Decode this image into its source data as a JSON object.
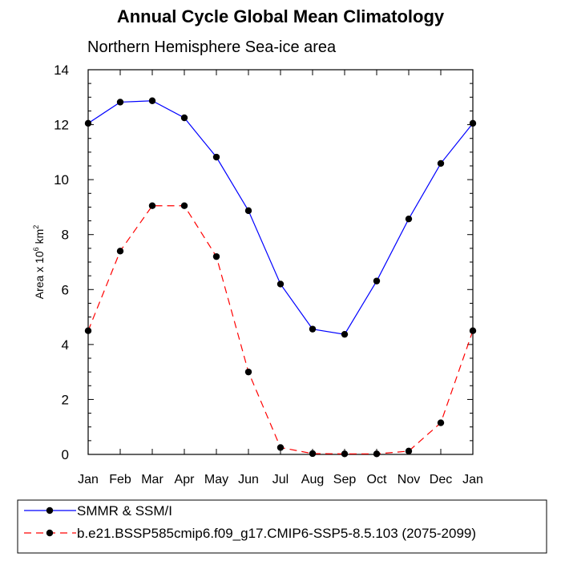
{
  "chart_data": {
    "type": "line",
    "title": "Annual Cycle Global Mean Climatology",
    "subtitle": "Northern Hemisphere Sea-ice area",
    "ylabel": {
      "prefix": "Area x 10",
      "exp1": "6",
      "mid": " km",
      "exp2": "2"
    },
    "xlabel": "",
    "categories": [
      "Jan",
      "Feb",
      "Mar",
      "Apr",
      "May",
      "Jun",
      "Jul",
      "Aug",
      "Sep",
      "Oct",
      "Nov",
      "Dec",
      "Jan"
    ],
    "ylim": [
      0,
      14
    ],
    "yticks": [
      0,
      2,
      4,
      6,
      8,
      10,
      12,
      14
    ],
    "grid": false,
    "legend_position": "bottom",
    "series": [
      {
        "name": "SMMR & SSM/I",
        "color": "#0000ff",
        "dash": "solid",
        "marker": "filled-circle",
        "values": [
          12.05,
          12.82,
          12.87,
          12.25,
          10.82,
          8.87,
          6.2,
          4.56,
          4.37,
          6.31,
          8.57,
          10.59,
          12.05
        ]
      },
      {
        "name": "b.e21.BSSP585cmip6.f09_g17.CMIP6-SSP5-8.5.103 (2075-2099)",
        "color": "#ff0000",
        "dash": "dashed",
        "marker": "filled-circle",
        "values": [
          4.5,
          7.4,
          9.05,
          9.05,
          7.2,
          3.0,
          0.25,
          0.03,
          0.02,
          0.02,
          0.12,
          1.15,
          4.5
        ]
      }
    ]
  }
}
